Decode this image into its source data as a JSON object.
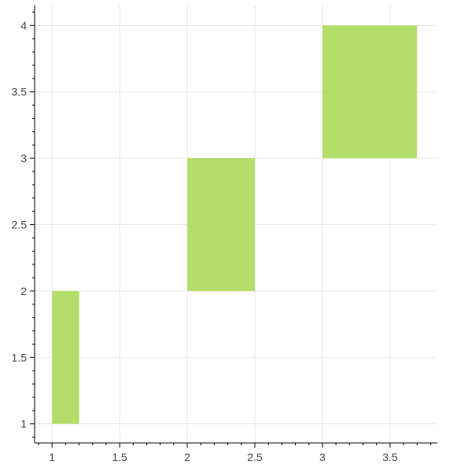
{
  "chart_data": {
    "type": "bar",
    "title": "",
    "xlabel": "",
    "ylabel": "",
    "xlim": [
      0.9,
      3.85
    ],
    "ylim": [
      0.85,
      4.15
    ],
    "x_ticks": [
      1,
      1.5,
      2,
      2.5,
      3,
      3.5
    ],
    "x_tick_labels": [
      "1",
      "1.5",
      "2",
      "2.5",
      "3",
      "3.5"
    ],
    "y_ticks": [
      1,
      1.5,
      2,
      2.5,
      3,
      3.5,
      4
    ],
    "y_tick_labels": [
      "1",
      "1.5",
      "2",
      "2.5",
      "3",
      "3.5",
      "4"
    ],
    "grid": true,
    "legend": "none",
    "rects": [
      {
        "left": 1.0,
        "right": 1.2,
        "bottom": 1,
        "top": 2
      },
      {
        "left": 2.0,
        "right": 2.5,
        "bottom": 2,
        "top": 3
      },
      {
        "left": 3.0,
        "right": 3.7,
        "bottom": 3,
        "top": 4
      }
    ],
    "colors": {
      "fill": "#b3de69",
      "grid": "#e5e5e5",
      "axis": "#000000",
      "tick_label": "#444444"
    }
  }
}
